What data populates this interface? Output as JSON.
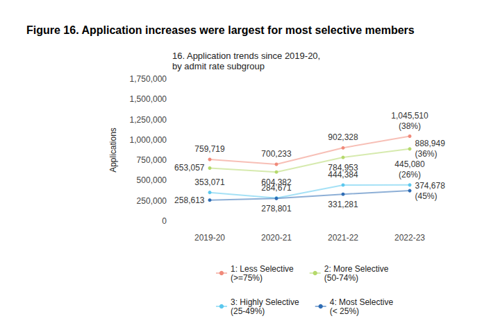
{
  "chart_data": {
    "type": "line",
    "title": "Figure 16. Application increases were largest for most selective members",
    "subtitle": "16. Application trends since 2019-20,\nby admit rate subgroup",
    "y_label": "Applications",
    "categories": [
      "2019-20",
      "2020-21",
      "2021-22",
      "2022-23"
    ],
    "series": [
      {
        "name": "1: Less Selective (>=75%)",
        "color": "#f08a7a",
        "values": [
          759719,
          700233,
          902328,
          1045510
        ],
        "value_labels": [
          "759,719",
          "700,233",
          "902,328",
          "1,045,510"
        ],
        "annotation": "(38%)",
        "marker": "circle"
      },
      {
        "name": "2: More Selective (50-74%)",
        "color": "#b5d96b",
        "values": [
          653057,
          604382,
          784953,
          888949
        ],
        "value_labels": [
          "653,057",
          "604,382",
          "784,953",
          "888,949"
        ],
        "annotation": "(36%)",
        "marker": "circle"
      },
      {
        "name": "3: Highly Selective (25-49%)",
        "color": "#5bc8ee",
        "values": [
          353071,
          284671,
          444384,
          445080
        ],
        "value_labels": [
          "353,071",
          "284,671",
          "444,384",
          "445,080"
        ],
        "annotation": "(26%)",
        "marker": "circle"
      },
      {
        "name": "4: Most Selective (< 25%)",
        "color": "#2f6db5",
        "values": [
          258613,
          278801,
          331281,
          374678
        ],
        "value_labels": [
          "258,613",
          "278,801",
          "331,281",
          "374,678"
        ],
        "annotation": "(45%)",
        "marker": "circle"
      }
    ],
    "ylim": [
      0,
      1750000
    ],
    "yticks": [
      0,
      {
        "value": 250000,
        "label": "250,000"
      },
      {
        "value": 500000,
        "label": "500,000"
      },
      {
        "value": 750000,
        "label": "750,000"
      },
      {
        "value": 1000000,
        "label": "1,000,000"
      },
      {
        "value": 1250000,
        "label": "1,250,000"
      },
      {
        "value": 1500000,
        "label": "1,500,000"
      },
      {
        "value": 1750000,
        "label": "1,750,000"
      }
    ],
    "grid": false,
    "legend": "bottom",
    "data_labels": true
  }
}
